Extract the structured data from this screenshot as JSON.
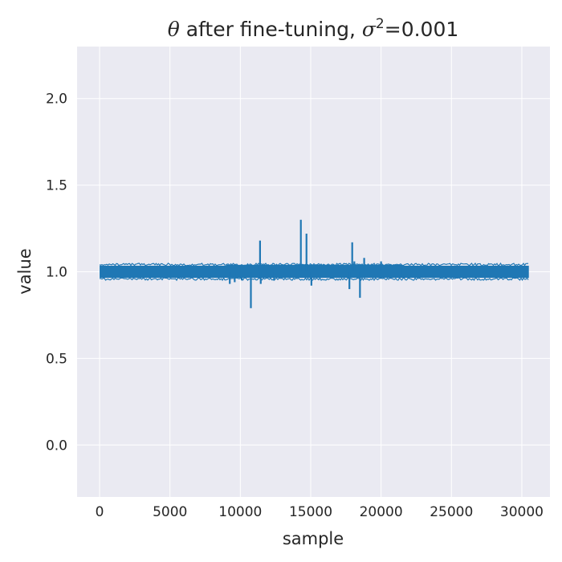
{
  "chart_data": {
    "type": "line",
    "title": {
      "prefix_symbol": "θ",
      "middle": " after fine-tuning, ",
      "sigma_symbol": "σ",
      "superscript": "2",
      "suffix": "=0.001"
    },
    "xlabel": "sample",
    "ylabel": "value",
    "xlim": [
      -1600,
      32000
    ],
    "ylim": [
      -0.3,
      2.3
    ],
    "xticks": [
      0,
      5000,
      10000,
      15000,
      20000,
      25000,
      30000
    ],
    "xtick_labels": [
      "0",
      "5000",
      "10000",
      "15000",
      "20000",
      "25000",
      "30000"
    ],
    "yticks": [
      0.0,
      0.5,
      1.0,
      1.5,
      2.0
    ],
    "ytick_labels": [
      "0.0",
      "0.5",
      "1.0",
      "1.5",
      "2.0"
    ],
    "grid": true,
    "style": "seaborn-darkgrid",
    "colors": {
      "background": "#eaeaf2",
      "grid": "#ffffff",
      "line": "#1f77b4"
    },
    "series": [
      {
        "x_range": [
          0,
          30500
        ],
        "band": {
          "low": 0.965,
          "high": 1.035,
          "dense_high_from": 9000,
          "dense_high_to": 21500,
          "dense_high": 1.04
        },
        "spikes": [
          {
            "x": 9250,
            "y": 0.93
          },
          {
            "x": 9600,
            "y": 0.94
          },
          {
            "x": 10100,
            "y": 0.95
          },
          {
            "x": 10750,
            "y": 0.79
          },
          {
            "x": 11400,
            "y": 1.18
          },
          {
            "x": 11450,
            "y": 0.93
          },
          {
            "x": 12400,
            "y": 0.95
          },
          {
            "x": 14300,
            "y": 1.3
          },
          {
            "x": 14700,
            "y": 1.22
          },
          {
            "x": 15050,
            "y": 0.92
          },
          {
            "x": 17750,
            "y": 0.9
          },
          {
            "x": 17950,
            "y": 1.17
          },
          {
            "x": 18100,
            "y": 1.06
          },
          {
            "x": 18500,
            "y": 0.85
          },
          {
            "x": 18800,
            "y": 1.08
          },
          {
            "x": 20000,
            "y": 1.06
          }
        ]
      }
    ]
  }
}
